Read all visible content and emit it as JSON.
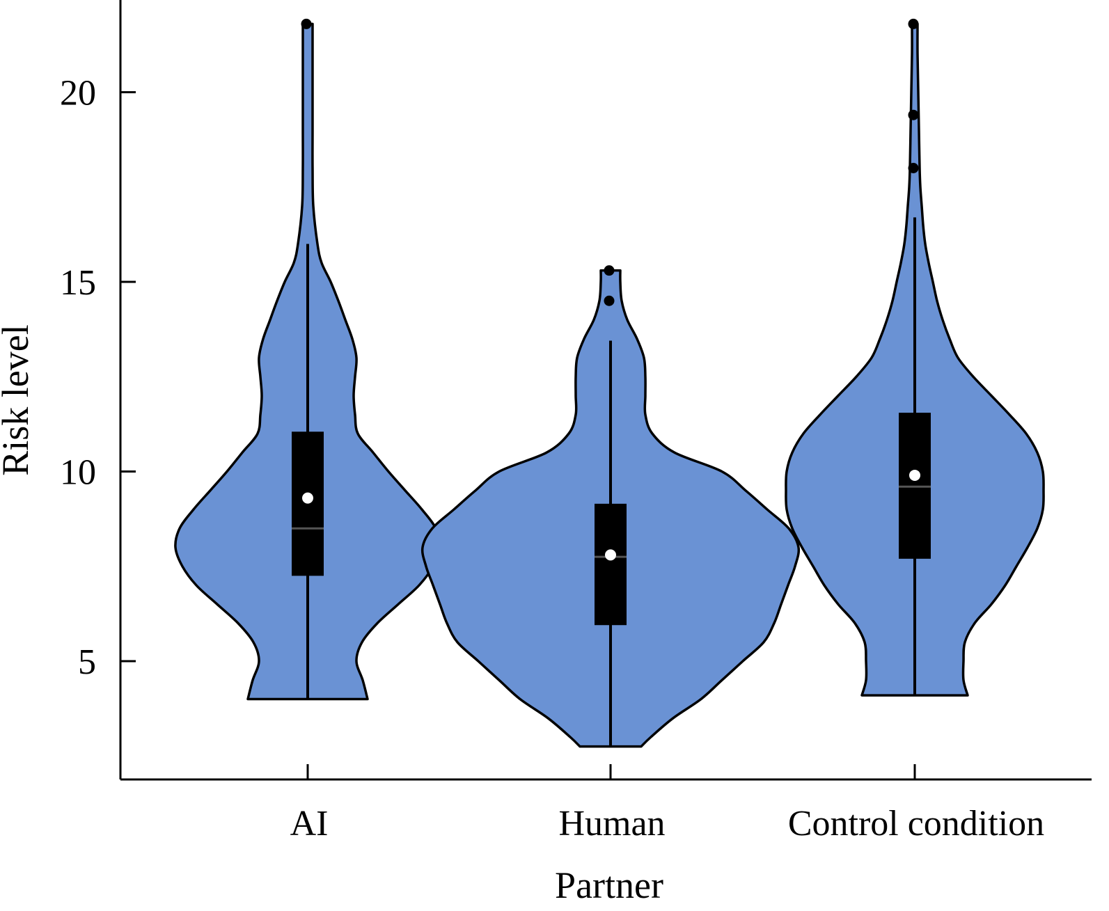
{
  "chart_data": {
    "type": "violin",
    "xlabel": "Partner",
    "ylabel": "Risk level",
    "categories": [
      "AI",
      "Human",
      "Control condition"
    ],
    "ylim": [
      2.1,
      22.3
    ],
    "yticks": [
      5,
      10,
      15,
      20
    ],
    "grid": false,
    "legend": "none",
    "colors": {
      "violin_fill": "#6a92d4",
      "outline": "#000000",
      "median_line": "#555555",
      "mean_marker": "#ffffff"
    },
    "series": [
      {
        "category": "AI",
        "min": 4.0,
        "q1": 7.25,
        "median": 8.5,
        "mean": 9.3,
        "q3": 11.05,
        "whisker_high": 16.0,
        "max": 21.8,
        "outliers": [
          21.8
        ],
        "density": [
          [
            4.0,
            0.86
          ],
          [
            4.5,
            0.79
          ],
          [
            5.0,
            0.7
          ],
          [
            5.5,
            0.78
          ],
          [
            6.0,
            1.0
          ],
          [
            6.5,
            1.3
          ],
          [
            7.0,
            1.6
          ],
          [
            7.5,
            1.8
          ],
          [
            8.0,
            1.9
          ],
          [
            8.5,
            1.84
          ],
          [
            9.0,
            1.64
          ],
          [
            9.5,
            1.4
          ],
          [
            10.0,
            1.16
          ],
          [
            10.5,
            0.94
          ],
          [
            11.0,
            0.72
          ],
          [
            11.5,
            0.68
          ],
          [
            12.0,
            0.66
          ],
          [
            12.5,
            0.68
          ],
          [
            13.0,
            0.7
          ],
          [
            13.5,
            0.64
          ],
          [
            14.0,
            0.54
          ],
          [
            14.5,
            0.44
          ],
          [
            15.0,
            0.33
          ],
          [
            15.5,
            0.2
          ],
          [
            16.0,
            0.14
          ],
          [
            17.0,
            0.08
          ],
          [
            18.0,
            0.07
          ],
          [
            19.0,
            0.07
          ],
          [
            20.0,
            0.07
          ],
          [
            21.0,
            0.07
          ],
          [
            21.8,
            0.07
          ]
        ]
      },
      {
        "category": "Human",
        "min": 2.75,
        "q1": 5.95,
        "median": 7.75,
        "mean": 7.8,
        "q3": 9.15,
        "whisker_high": 13.45,
        "max": 15.3,
        "outliers": [
          15.3,
          14.5
        ],
        "density": [
          [
            2.75,
            0.44
          ],
          [
            3.0,
            0.58
          ],
          [
            3.5,
            0.9
          ],
          [
            4.0,
            1.3
          ],
          [
            4.5,
            1.6
          ],
          [
            5.0,
            1.9
          ],
          [
            5.5,
            2.2
          ],
          [
            6.0,
            2.35
          ],
          [
            6.5,
            2.45
          ],
          [
            7.0,
            2.55
          ],
          [
            7.5,
            2.65
          ],
          [
            8.0,
            2.7
          ],
          [
            8.5,
            2.56
          ],
          [
            9.0,
            2.25
          ],
          [
            9.5,
            1.94
          ],
          [
            10.0,
            1.6
          ],
          [
            10.5,
            0.92
          ],
          [
            11.0,
            0.6
          ],
          [
            11.5,
            0.5
          ],
          [
            12.0,
            0.5
          ],
          [
            12.5,
            0.5
          ],
          [
            13.0,
            0.48
          ],
          [
            13.5,
            0.38
          ],
          [
            14.0,
            0.24
          ],
          [
            14.5,
            0.16
          ],
          [
            15.0,
            0.14
          ],
          [
            15.3,
            0.14
          ]
        ]
      },
      {
        "category": "Control condition",
        "min": 4.1,
        "q1": 7.7,
        "median": 9.6,
        "mean": 9.9,
        "q3": 11.55,
        "whisker_high": 16.7,
        "max": 21.8,
        "outliers": [
          21.8,
          19.4,
          18.0
        ],
        "density": [
          [
            4.1,
            0.76
          ],
          [
            4.5,
            0.7
          ],
          [
            5.0,
            0.7
          ],
          [
            5.5,
            0.72
          ],
          [
            6.0,
            0.86
          ],
          [
            6.5,
            1.1
          ],
          [
            7.0,
            1.3
          ],
          [
            7.5,
            1.46
          ],
          [
            8.0,
            1.62
          ],
          [
            8.5,
            1.76
          ],
          [
            9.0,
            1.84
          ],
          [
            9.5,
            1.85
          ],
          [
            10.0,
            1.84
          ],
          [
            10.5,
            1.76
          ],
          [
            11.0,
            1.6
          ],
          [
            11.5,
            1.36
          ],
          [
            12.0,
            1.1
          ],
          [
            12.5,
            0.84
          ],
          [
            13.0,
            0.62
          ],
          [
            13.5,
            0.5
          ],
          [
            14.0,
            0.4
          ],
          [
            14.5,
            0.32
          ],
          [
            15.0,
            0.26
          ],
          [
            15.5,
            0.2
          ],
          [
            16.0,
            0.15
          ],
          [
            16.5,
            0.12
          ],
          [
            17.0,
            0.1
          ],
          [
            17.5,
            0.08
          ],
          [
            18.0,
            0.07
          ],
          [
            19.0,
            0.06
          ],
          [
            20.0,
            0.05
          ],
          [
            21.0,
            0.04
          ],
          [
            21.8,
            0.04
          ]
        ]
      }
    ]
  }
}
